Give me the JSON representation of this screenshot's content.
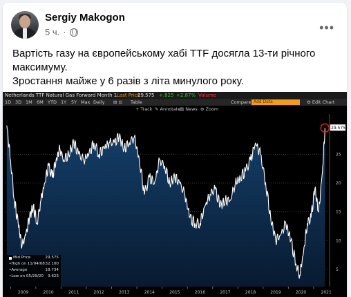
{
  "post": {
    "author": "Sergiy Makogon",
    "time": "5 ч.",
    "separator": "·",
    "text_lines": [
      "Вартість газу на європейському хабі TTF досягла 13-ти річного максимуму.",
      "Зростання майже у 6 разів з літа минулого року."
    ],
    "more_glyph": "•••"
  },
  "terminal": {
    "title": "Netherlands TTF Natural Gas Forward Month 1",
    "last_price_label": "Last Price",
    "last_price": "29.575",
    "change": "+.825",
    "change_pct": "+2.87%",
    "volume_label": "Volume",
    "compare_label": "Compare ▸",
    "add_data_label": "Add Data",
    "edit_chart_label": "⚙ Edit Chart",
    "timeframes": [
      "1D",
      "3D",
      "1M",
      "6M",
      "YTD",
      "1Y",
      "5Y",
      "Max",
      "Daily"
    ],
    "tools": [
      "Table"
    ],
    "track_label": "Track",
    "annotate_label": "Annotate",
    "news_label": "News",
    "zoom_label": "Zoom",
    "legend": {
      "rows": [
        {
          "label": "Mid Price",
          "value": "29.575"
        },
        {
          "label": "High on 11/04/08",
          "value": "32.100"
        },
        {
          "label": "Average",
          "value": "18.734"
        },
        {
          "label": "Low on 05/29/20",
          "value": "3.625"
        }
      ]
    },
    "colors": {
      "positive": "#37c837",
      "negative": "#ff3b3b",
      "accent": "#f29b1f",
      "area_fill": "#0d2a4a",
      "line": "#ffffff",
      "marker": "#e0201f"
    }
  },
  "chart_data": {
    "type": "area",
    "title": "Netherlands TTF Natural Gas Forward Month 1",
    "ylim": [
      2,
      32
    ],
    "yticks": [
      5,
      10,
      15,
      20,
      25
    ],
    "xticks": [
      "2009",
      "2010",
      "2011",
      "2012",
      "2013",
      "2014",
      "2015",
      "2016",
      "2017",
      "2018",
      "2019",
      "2020",
      "2021"
    ],
    "last_value_label": "29.575",
    "series": [
      {
        "name": "Mid Price",
        "x": [
          2008.85,
          2009.0,
          2009.15,
          2009.3,
          2009.45,
          2009.6,
          2009.75,
          2009.9,
          2010.05,
          2010.2,
          2010.35,
          2010.5,
          2010.65,
          2010.8,
          2010.95,
          2011.1,
          2011.3,
          2011.5,
          2011.7,
          2011.9,
          2012.1,
          2012.3,
          2012.5,
          2012.7,
          2012.9,
          2013.1,
          2013.3,
          2013.5,
          2013.7,
          2013.9,
          2014.1,
          2014.3,
          2014.5,
          2014.7,
          2014.9,
          2015.1,
          2015.3,
          2015.5,
          2015.7,
          2015.9,
          2016.1,
          2016.3,
          2016.5,
          2016.7,
          2016.9,
          2017.1,
          2017.3,
          2017.5,
          2017.7,
          2017.9,
          2018.1,
          2018.3,
          2018.5,
          2018.7,
          2018.9,
          2019.1,
          2019.3,
          2019.5,
          2019.7,
          2019.9,
          2020.1,
          2020.3,
          2020.45,
          2020.6,
          2020.75,
          2020.9,
          2021.05,
          2021.2,
          2021.35,
          2021.45
        ],
        "y": [
          30,
          24,
          17,
          13,
          9,
          11,
          14,
          16,
          13,
          17,
          20,
          23,
          21,
          24,
          26,
          24,
          25,
          27,
          25,
          24,
          25,
          27,
          25,
          26,
          27,
          27,
          28,
          26,
          27,
          28,
          24,
          18,
          21,
          20,
          24,
          23,
          20,
          21,
          20,
          18,
          14,
          13,
          13,
          16,
          18,
          19,
          16,
          17,
          17,
          20,
          21,
          22,
          24,
          27,
          25,
          20,
          14,
          10,
          11,
          13,
          10,
          6,
          4,
          8,
          13,
          14,
          19,
          15,
          22,
          29.575
        ]
      }
    ]
  }
}
